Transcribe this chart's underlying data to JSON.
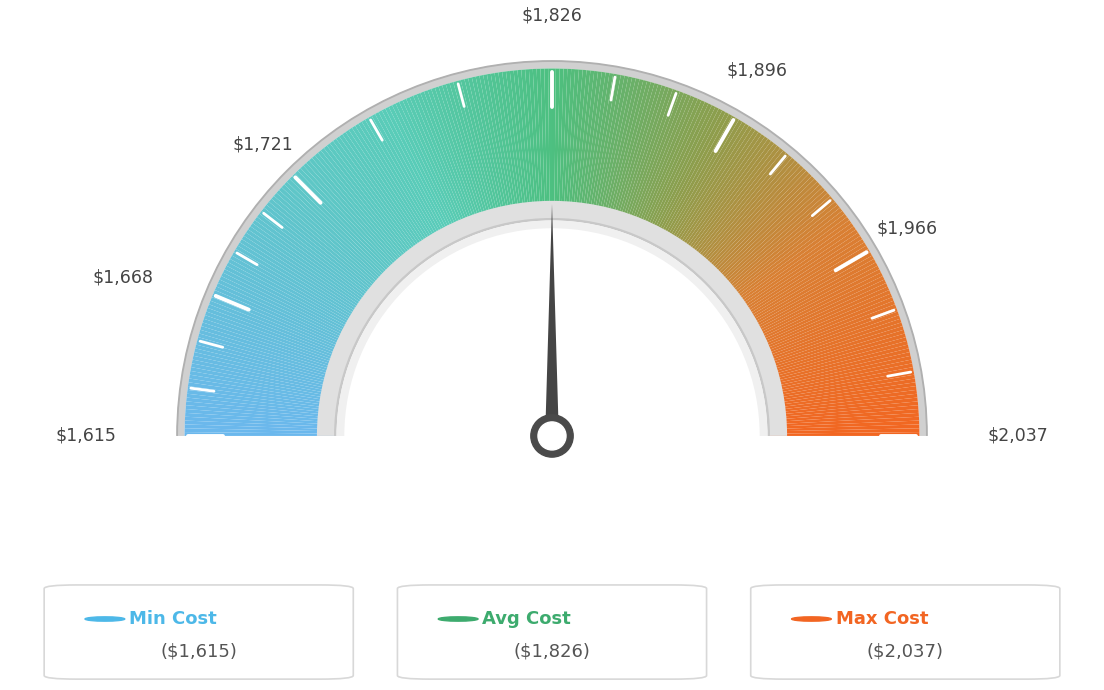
{
  "min_val": 1615,
  "max_val": 2037,
  "avg_val": 1826,
  "tick_vals": [
    1615,
    1668,
    1721,
    1826,
    1896,
    1966,
    2037
  ],
  "labels": [
    "$1,615",
    "$1,668",
    "$1,721",
    "$1,826",
    "$1,896",
    "$1,966",
    "$2,037"
  ],
  "legend_labels": [
    "Min Cost",
    "Avg Cost",
    "Max Cost"
  ],
  "legend_values": [
    "($1,615)",
    "($1,826)",
    "($2,037)"
  ],
  "legend_colors": [
    "#4db8e8",
    "#3dab6e",
    "#f26522"
  ],
  "bg_color": "#ffffff",
  "gauge_color_stops": [
    [
      0.0,
      [
        0.42,
        0.72,
        0.93
      ]
    ],
    [
      0.35,
      [
        0.35,
        0.8,
        0.72
      ]
    ],
    [
      0.5,
      [
        0.3,
        0.75,
        0.5
      ]
    ],
    [
      0.65,
      [
        0.55,
        0.62,
        0.3
      ]
    ],
    [
      0.8,
      [
        0.85,
        0.5,
        0.2
      ]
    ],
    [
      1.0,
      [
        0.95,
        0.4,
        0.13
      ]
    ]
  ]
}
